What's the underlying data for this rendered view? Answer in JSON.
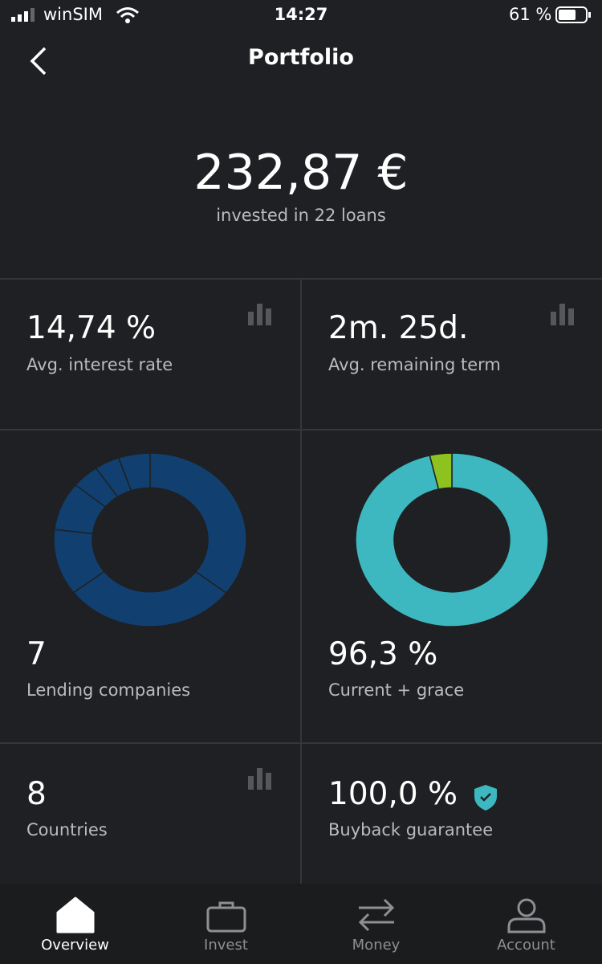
{
  "status": {
    "carrier": "winSIM",
    "time": "14:27",
    "battery": "61 %"
  },
  "header": {
    "title": "Portfolio"
  },
  "summary": {
    "amount": "232,87 €",
    "caption": "invested in 22 loans"
  },
  "tiles": [
    {
      "value": "14,74 %",
      "label": "Avg. interest rate"
    },
    {
      "value": "2m. 25d.",
      "label": "Avg. remaining term"
    },
    {
      "value": "7",
      "label": "Lending companies"
    },
    {
      "value": "96,3 %",
      "label": "Current + grace"
    },
    {
      "value": "8",
      "label": "Countries"
    },
    {
      "value": "100,0 %",
      "label": "Buyback guarantee"
    }
  ],
  "charts": [
    {
      "type": "donut",
      "segments": [
        35.5,
        29.1,
        12.3,
        9.0,
        4.6,
        4.2,
        5.3
      ],
      "colors": [
        "#114070"
      ]
    },
    {
      "type": "donut",
      "segments": [
        96.3,
        3.7
      ],
      "colors": [
        "#3db8c0",
        "#8dc21f"
      ]
    }
  ],
  "tabs": [
    "Overview",
    "Invest",
    "Money",
    "Account"
  ]
}
